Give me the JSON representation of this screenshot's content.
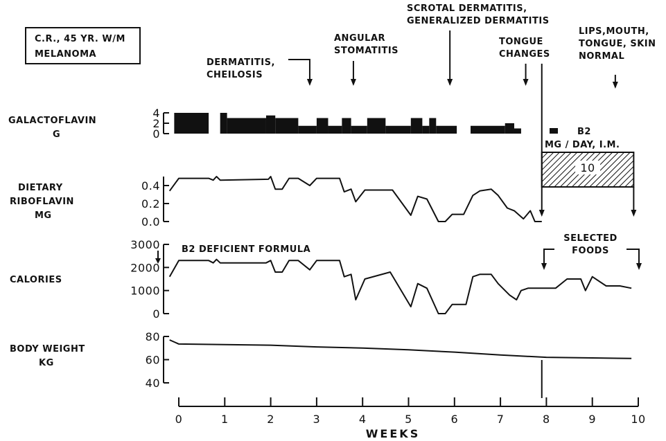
{
  "chart_data": {
    "type": "line",
    "patient_box": [
      "C.R., 45 YR. W/M",
      "MELANOMA"
    ],
    "x_axis": {
      "label": "WEEKS",
      "range": [
        0,
        10
      ],
      "ticks": [
        "0",
        "1",
        "2",
        "3",
        "4",
        "5",
        "6",
        "7",
        "8",
        "9",
        "10"
      ]
    },
    "annotations": [
      {
        "text": [
          "DERMATITIS,",
          "CHEILOSIS"
        ],
        "week": 2.85
      },
      {
        "text": [
          "ANGULAR",
          "STOMATITIS"
        ],
        "week": 3.8
      },
      {
        "text": [
          "SCROTAL DERMATITIS,",
          "GENERALIZED DERMATITIS"
        ],
        "week": 5.9
      },
      {
        "text": [
          "TONGUE",
          "CHANGES"
        ],
        "week": 7.55
      },
      {
        "text": [
          "LIPS,MOUTH,",
          "TONGUE, SKIN",
          "NORMAL"
        ],
        "week": 9.5
      }
    ],
    "panels": {
      "galactoflavin": {
        "label": [
          "GALACTOFLAVIN",
          "G"
        ],
        "ylim": [
          0,
          4
        ],
        "yticks": [
          "4",
          "2",
          "0"
        ],
        "blocks": [
          {
            "start": -0.1,
            "end": 0.65,
            "value": 4
          },
          {
            "start": 0.9,
            "end": 1.05,
            "value": 4
          },
          {
            "start": 1.05,
            "end": 1.9,
            "value": 3
          },
          {
            "start": 1.9,
            "end": 2.1,
            "value": 3.5
          },
          {
            "start": 2.1,
            "end": 2.6,
            "value": 3
          },
          {
            "start": 2.6,
            "end": 3.0,
            "value": 1.5
          },
          {
            "start": 3.0,
            "end": 3.25,
            "value": 3
          },
          {
            "start": 3.25,
            "end": 3.55,
            "value": 1.5
          },
          {
            "start": 3.55,
            "end": 3.75,
            "value": 3
          },
          {
            "start": 3.75,
            "end": 4.1,
            "value": 1.5
          },
          {
            "start": 4.1,
            "end": 4.5,
            "value": 3
          },
          {
            "start": 4.5,
            "end": 5.05,
            "value": 1.5
          },
          {
            "start": 5.05,
            "end": 5.3,
            "value": 3
          },
          {
            "start": 5.3,
            "end": 5.45,
            "value": 1.5
          },
          {
            "start": 5.45,
            "end": 5.6,
            "value": 3
          },
          {
            "start": 5.6,
            "end": 6.05,
            "value": 1.5
          },
          {
            "start": 6.35,
            "end": 7.1,
            "value": 1.5
          },
          {
            "start": 7.1,
            "end": 7.3,
            "value": 2
          },
          {
            "start": 7.3,
            "end": 7.45,
            "value": 1
          }
        ]
      },
      "b2": {
        "label": "B2",
        "sublabel": "MG / DAY, I.M.",
        "value": "10",
        "start": 7.9,
        "end": 9.9
      },
      "riboflavin": {
        "label": [
          "DIETARY",
          "RIBOFLAVIN",
          "MG"
        ],
        "ylim": [
          0,
          0.5
        ],
        "yticks": [
          "0.4",
          "0.2",
          "0.0"
        ],
        "x": [
          -0.2,
          0,
          0.65,
          0.75,
          0.82,
          0.9,
          1.95,
          2.0,
          2.1,
          2.25,
          2.4,
          2.6,
          2.85,
          3.0,
          3.5,
          3.6,
          3.75,
          3.85,
          4.05,
          4.65,
          5.05,
          5.2,
          5.4,
          5.65,
          5.8,
          5.95,
          6.2,
          6.4,
          6.55,
          6.8,
          6.95,
          7.15,
          7.3,
          7.5,
          7.65,
          7.75,
          7.9
        ],
        "y": [
          0.34,
          0.48,
          0.48,
          0.46,
          0.5,
          0.46,
          0.47,
          0.5,
          0.36,
          0.36,
          0.48,
          0.48,
          0.4,
          0.48,
          0.48,
          0.33,
          0.36,
          0.22,
          0.35,
          0.35,
          0.07,
          0.28,
          0.25,
          0.0,
          0.0,
          0.08,
          0.08,
          0.29,
          0.34,
          0.36,
          0.29,
          0.15,
          0.12,
          0.03,
          0.12,
          0.0,
          0.0
        ]
      },
      "calories": {
        "label": "CALORIES",
        "ylim": [
          0,
          3000
        ],
        "yticks": [
          "3000",
          "2000",
          "1000",
          "0"
        ],
        "text": "B2 DEFICIENT FORMULA",
        "selected_foods": "SELECTED FOODS",
        "x": [
          -0.2,
          0.0,
          0.65,
          0.75,
          0.82,
          0.9,
          1.9,
          2.0,
          2.1,
          2.25,
          2.4,
          2.6,
          2.85,
          3.0,
          3.5,
          3.6,
          3.75,
          3.85,
          4.05,
          4.6,
          5.05,
          5.2,
          5.4,
          5.65,
          5.8,
          5.95,
          6.25,
          6.4,
          6.55,
          6.8,
          6.95,
          7.2,
          7.35,
          7.45,
          7.6,
          8.2,
          8.45,
          8.75,
          8.85,
          9.0,
          9.3,
          9.6,
          9.85
        ],
        "y": [
          1600,
          2300,
          2300,
          2200,
          2350,
          2200,
          2200,
          2300,
          1800,
          1800,
          2300,
          2300,
          1900,
          2300,
          2300,
          1600,
          1700,
          600,
          1500,
          1800,
          300,
          1300,
          1100,
          0,
          0,
          400,
          400,
          1600,
          1700,
          1700,
          1300,
          800,
          600,
          1000,
          1100,
          1100,
          1500,
          1500,
          1000,
          1600,
          1200,
          1200,
          1100
        ]
      },
      "weight": {
        "label": [
          "BODY WEIGHT",
          "KG"
        ],
        "ylim": [
          40,
          80
        ],
        "yticks": [
          "80",
          "60",
          "40"
        ],
        "x": [
          -0.2,
          0.0,
          1.0,
          2.0,
          3.0,
          4.0,
          5.0,
          6.0,
          7.0,
          8.0,
          9.0,
          9.85
        ],
        "y": [
          77,
          73.5,
          73,
          72.5,
          71,
          70,
          68.5,
          66.5,
          64,
          62,
          61.5,
          61
        ]
      }
    }
  }
}
